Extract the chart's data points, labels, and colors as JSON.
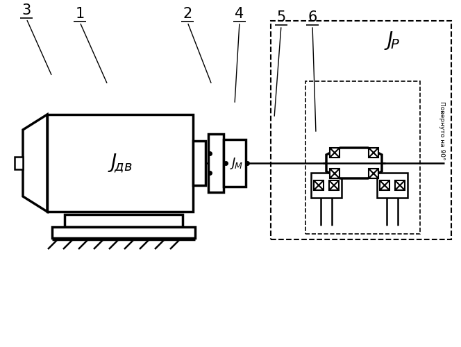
{
  "bg_color": "#ffffff",
  "line_color": "#000000",
  "lw_thin": 1.2,
  "lw_med": 1.8,
  "lw_thick": 2.5,
  "rotated_text": "Повернуто на 90°"
}
